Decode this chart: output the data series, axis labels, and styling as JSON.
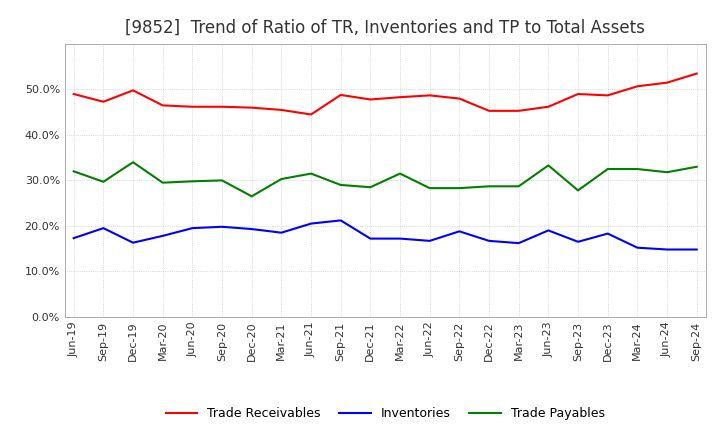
{
  "title": "[9852]  Trend of Ratio of TR, Inventories and TP to Total Assets",
  "x_labels": [
    "Jun-19",
    "Sep-19",
    "Dec-19",
    "Mar-20",
    "Jun-20",
    "Sep-20",
    "Dec-20",
    "Mar-21",
    "Jun-21",
    "Sep-21",
    "Dec-21",
    "Mar-22",
    "Jun-22",
    "Sep-22",
    "Dec-22",
    "Mar-23",
    "Jun-23",
    "Sep-23",
    "Dec-23",
    "Mar-24",
    "Jun-24",
    "Sep-24"
  ],
  "trade_receivables": [
    0.49,
    0.473,
    0.498,
    0.465,
    0.462,
    0.462,
    0.46,
    0.455,
    0.445,
    0.488,
    0.478,
    0.483,
    0.487,
    0.48,
    0.453,
    0.453,
    0.462,
    0.49,
    0.487,
    0.507,
    0.515,
    0.535
  ],
  "inventories": [
    0.173,
    0.195,
    0.163,
    0.178,
    0.195,
    0.198,
    0.193,
    0.185,
    0.205,
    0.212,
    0.172,
    0.172,
    0.167,
    0.188,
    0.167,
    0.162,
    0.19,
    0.165,
    0.183,
    0.152,
    0.148,
    0.148
  ],
  "trade_payables": [
    0.32,
    0.297,
    0.34,
    0.295,
    0.298,
    0.3,
    0.265,
    0.303,
    0.315,
    0.29,
    0.285,
    0.315,
    0.283,
    0.283,
    0.287,
    0.287,
    0.333,
    0.278,
    0.325,
    0.325,
    0.318,
    0.33
  ],
  "tr_color": "#ff0000",
  "inv_color": "#0000ff",
  "tp_color": "#008000",
  "ylim": [
    0.0,
    0.6
  ],
  "yticks": [
    0.0,
    0.1,
    0.2,
    0.3,
    0.4,
    0.5
  ],
  "background_color": "#ffffff",
  "grid_color": "#aaaaaa",
  "title_fontsize": 12,
  "tick_fontsize": 8,
  "legend_fontsize": 9
}
